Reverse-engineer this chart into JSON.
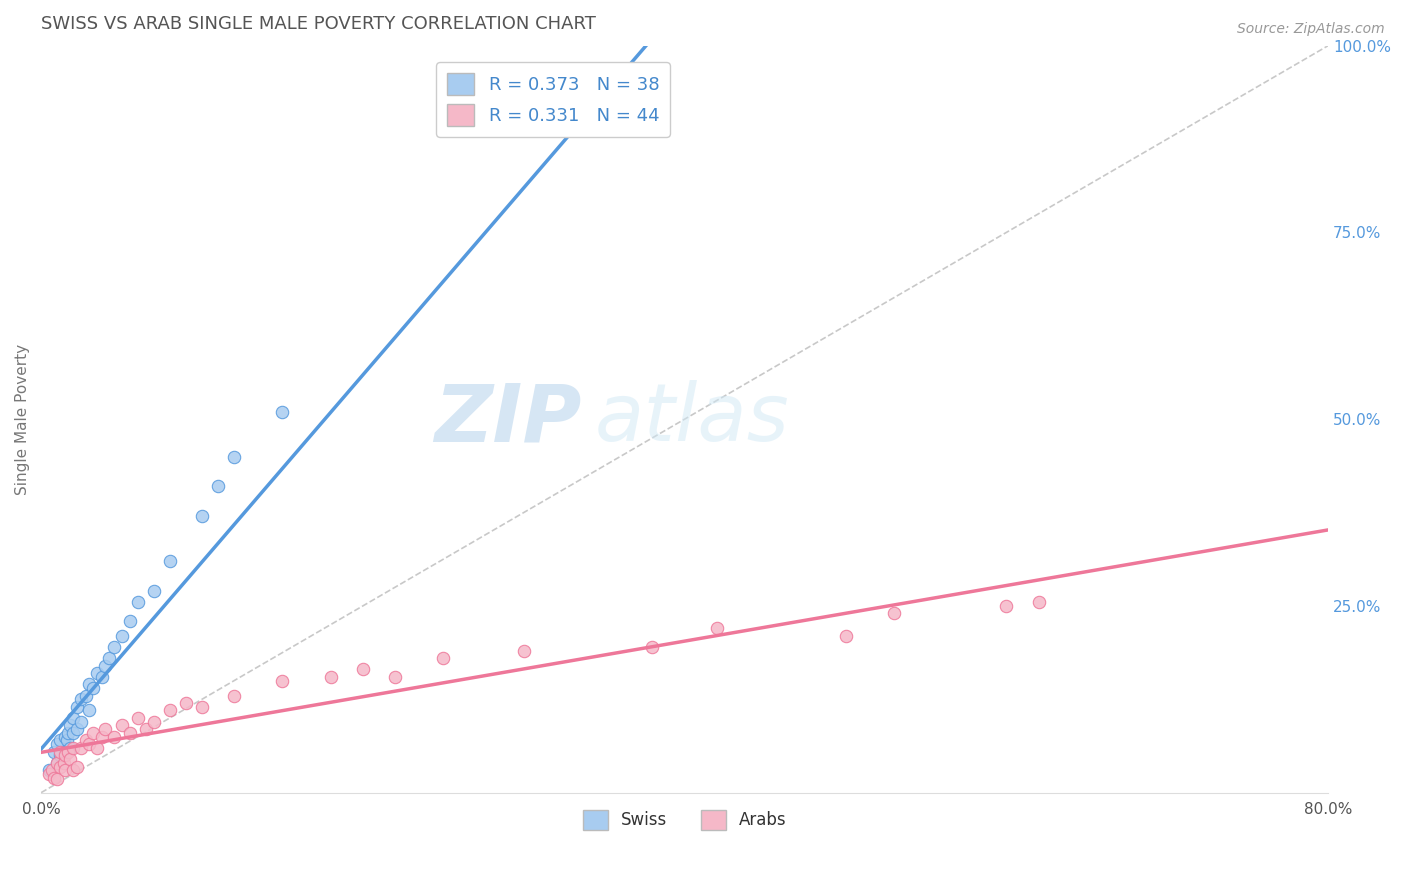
{
  "title": "SWISS VS ARAB SINGLE MALE POVERTY CORRELATION CHART",
  "source_text": "Source: ZipAtlas.com",
  "ylabel": "Single Male Poverty",
  "watermark_zip": "ZIP",
  "watermark_atlas": "atlas",
  "xlim": [
    0.0,
    0.8
  ],
  "ylim": [
    0.0,
    1.0
  ],
  "yticks_right": [
    0.0,
    0.25,
    0.5,
    0.75,
    1.0
  ],
  "yticklabels_right": [
    "",
    "25.0%",
    "50.0%",
    "75.0%",
    "100.0%"
  ],
  "legend_swiss": "R = 0.373   N = 38",
  "legend_arab": "R = 0.331   N = 44",
  "swiss_color": "#A8CCF0",
  "arab_color": "#F5B8C8",
  "swiss_line_color": "#5599DD",
  "arab_line_color": "#EE7799",
  "ref_line_color": "#BBBBBB",
  "swiss_x": [
    0.005,
    0.008,
    0.01,
    0.01,
    0.012,
    0.012,
    0.015,
    0.015,
    0.016,
    0.017,
    0.018,
    0.018,
    0.02,
    0.02,
    0.022,
    0.022,
    0.025,
    0.025,
    0.028,
    0.03,
    0.03,
    0.032,
    0.035,
    0.038,
    0.04,
    0.042,
    0.045,
    0.05,
    0.055,
    0.06,
    0.07,
    0.08,
    0.1,
    0.11,
    0.12,
    0.15,
    0.38,
    0.38
  ],
  "swiss_y": [
    0.03,
    0.055,
    0.04,
    0.065,
    0.05,
    0.07,
    0.055,
    0.075,
    0.07,
    0.08,
    0.06,
    0.09,
    0.08,
    0.1,
    0.085,
    0.115,
    0.095,
    0.125,
    0.13,
    0.11,
    0.145,
    0.14,
    0.16,
    0.155,
    0.17,
    0.18,
    0.195,
    0.21,
    0.23,
    0.255,
    0.27,
    0.31,
    0.37,
    0.41,
    0.45,
    0.51,
    0.94,
    0.96
  ],
  "arab_x": [
    0.005,
    0.007,
    0.008,
    0.01,
    0.01,
    0.012,
    0.012,
    0.014,
    0.015,
    0.015,
    0.017,
    0.018,
    0.02,
    0.02,
    0.022,
    0.025,
    0.028,
    0.03,
    0.032,
    0.035,
    0.038,
    0.04,
    0.045,
    0.05,
    0.055,
    0.06,
    0.065,
    0.07,
    0.08,
    0.09,
    0.1,
    0.12,
    0.15,
    0.18,
    0.2,
    0.22,
    0.25,
    0.3,
    0.38,
    0.42,
    0.5,
    0.53,
    0.6,
    0.62
  ],
  "arab_y": [
    0.025,
    0.03,
    0.02,
    0.018,
    0.04,
    0.035,
    0.055,
    0.04,
    0.05,
    0.03,
    0.055,
    0.045,
    0.06,
    0.03,
    0.035,
    0.06,
    0.07,
    0.065,
    0.08,
    0.06,
    0.075,
    0.085,
    0.075,
    0.09,
    0.08,
    0.1,
    0.085,
    0.095,
    0.11,
    0.12,
    0.115,
    0.13,
    0.15,
    0.155,
    0.165,
    0.155,
    0.18,
    0.19,
    0.195,
    0.22,
    0.21,
    0.24,
    0.25,
    0.255
  ],
  "background_color": "#FFFFFF",
  "grid_color": "#E8E8E8",
  "title_color": "#555555",
  "axis_label_color": "#777777",
  "tick_label_color": "#555555"
}
